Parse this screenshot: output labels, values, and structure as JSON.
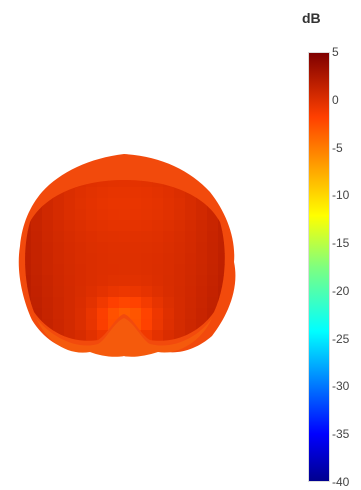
{
  "chart_data": {
    "type": "heatmap",
    "description_kind": "3d-radiation-pattern-surface",
    "title": "",
    "colorbar": {
      "title": "dB",
      "range": [
        -40,
        5
      ],
      "ticks": [
        5,
        0,
        -5,
        -10,
        -15,
        -20,
        -25,
        -30,
        -35,
        -40
      ],
      "tick_labels": [
        "5",
        "0",
        "-5",
        "-10",
        "-15",
        "-20",
        "-25",
        "-30",
        "-35",
        "-40"
      ],
      "colorscale": [
        [
          0.0,
          "#00008f"
        ],
        [
          0.11,
          "#0000ff"
        ],
        [
          0.35,
          "#00ffff"
        ],
        [
          0.5,
          "#7fff7f"
        ],
        [
          0.62,
          "#ffff00"
        ],
        [
          0.85,
          "#ff4000"
        ],
        [
          1.0,
          "#7f0000"
        ]
      ]
    },
    "surface_values_db": {
      "min": -4,
      "max": 2,
      "dominant": 0
    }
  }
}
